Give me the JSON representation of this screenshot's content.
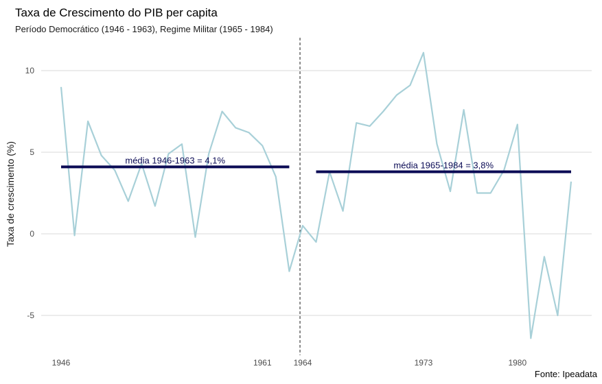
{
  "chart_data": {
    "type": "line",
    "title": "Taxa de Crescimento do PIB per capita",
    "subtitle": "Período Democrático (1946 - 1963), Regime Militar (1965 - 1984)",
    "xlabel": "",
    "ylabel": "Taxa de crescimento (%)",
    "caption": "Fonte: Ipeadata",
    "xlim": [
      1946,
      1984
    ],
    "ylim": [
      -7,
      12
    ],
    "x_ticks": [
      1946,
      1961,
      1964,
      1973,
      1980
    ],
    "y_ticks": [
      -5,
      0,
      5,
      10
    ],
    "grid": "horizontal",
    "series": [
      {
        "color": "#a8d0d8",
        "x": [
          1946,
          1947,
          1948,
          1949,
          1950,
          1951,
          1952,
          1953,
          1954,
          1955,
          1956,
          1957,
          1958,
          1959,
          1960,
          1961,
          1962,
          1963,
          1964,
          1965,
          1966,
          1967,
          1968,
          1969,
          1970,
          1971,
          1972,
          1973,
          1974,
          1975,
          1976,
          1977,
          1978,
          1979,
          1980,
          1981,
          1982,
          1983,
          1984
        ],
        "y": [
          9.0,
          -0.1,
          6.9,
          4.8,
          3.9,
          2.0,
          4.3,
          1.7,
          4.9,
          5.5,
          -0.2,
          4.9,
          7.5,
          6.5,
          6.2,
          5.4,
          3.5,
          -2.3,
          0.5,
          -0.5,
          3.8,
          1.4,
          6.8,
          6.6,
          7.5,
          8.5,
          9.1,
          11.1,
          5.5,
          2.6,
          7.6,
          2.5,
          2.5,
          3.9,
          6.7,
          -6.4,
          -1.4,
          -5.0,
          3.2
        ]
      }
    ],
    "annotations": [
      {
        "text": "média 1946-1963 = 4,1%",
        "x_start": 1946,
        "x_end": 1963,
        "value": 4.1,
        "color": "#0b0b55"
      },
      {
        "text": "média 1965-1984 = 3,8%",
        "x_start": 1965,
        "x_end": 1984,
        "value": 3.8,
        "color": "#0b0b55"
      }
    ],
    "vline": {
      "x": 1963.8,
      "style": "dashed",
      "color": "#1a1a1a"
    }
  }
}
